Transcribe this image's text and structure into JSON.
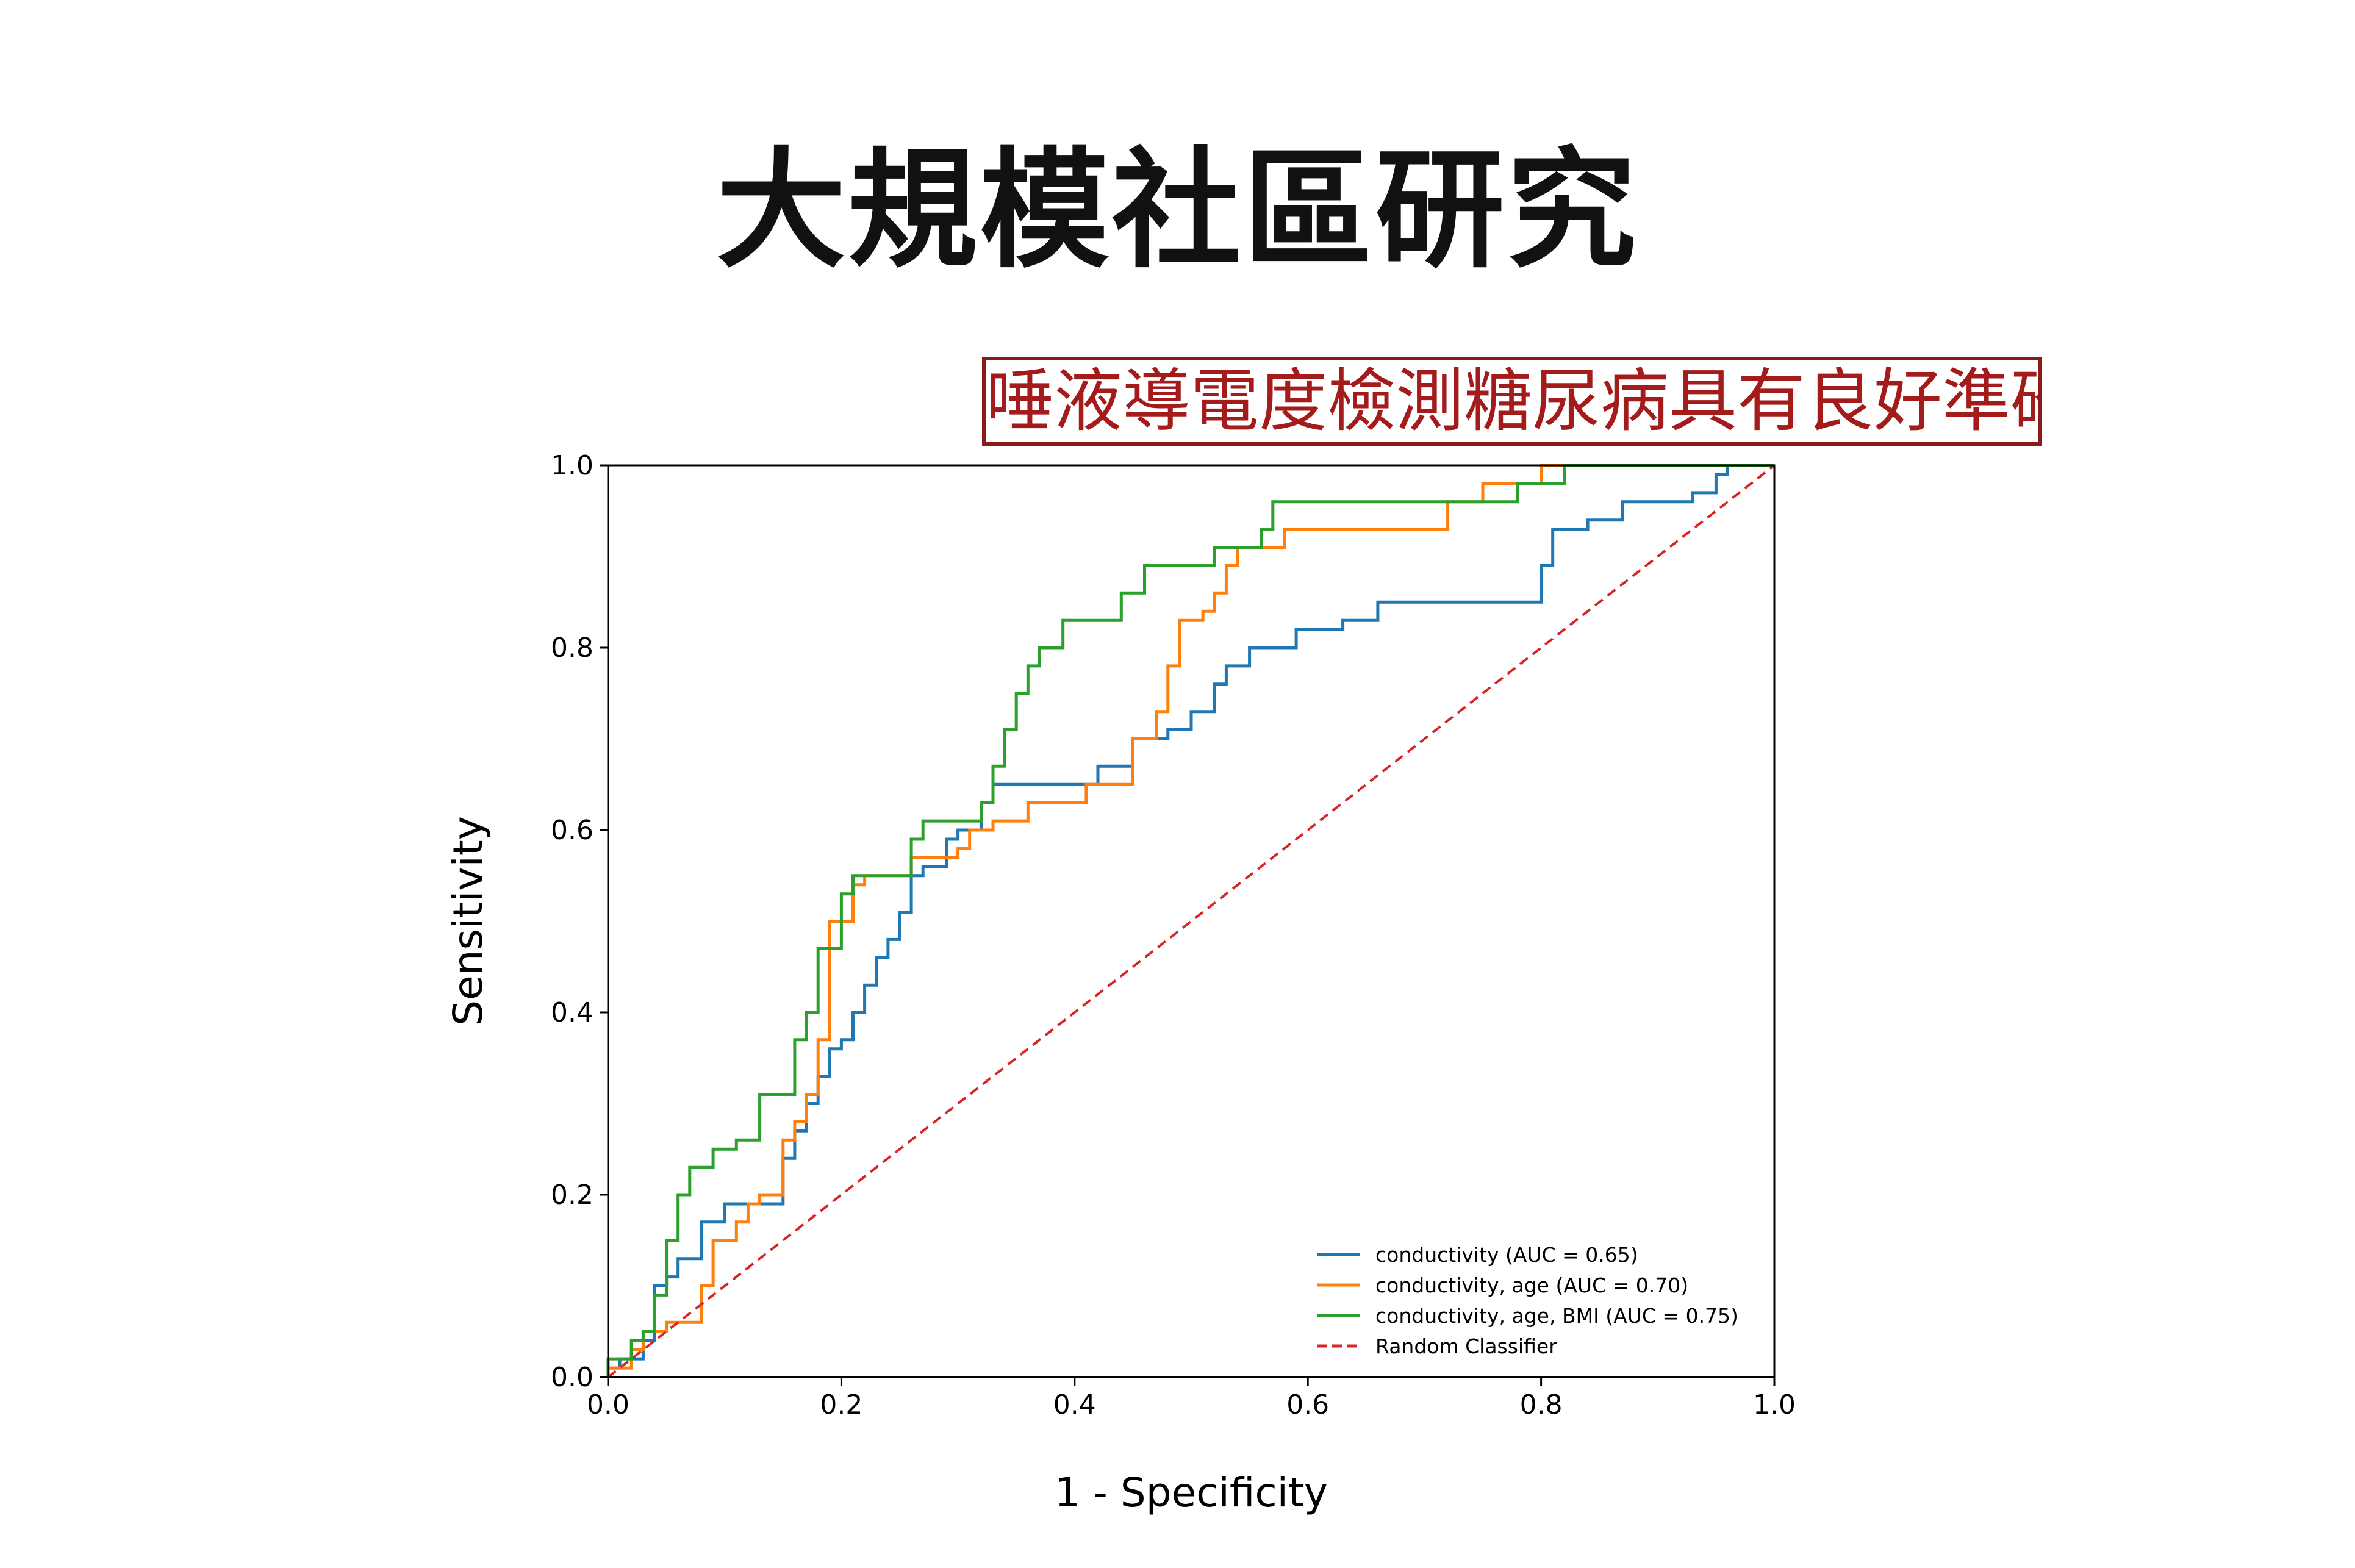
{
  "slide": {
    "title": "大規模社區研究",
    "callout": "唾液導電度檢測糖尿病具有良好準確率"
  },
  "chart_data": {
    "type": "line",
    "title": "",
    "xlabel": "1 - Specificity",
    "ylabel": "Sensitivity",
    "xlim": [
      0,
      1
    ],
    "ylim": [
      0,
      1
    ],
    "x_ticks": [
      "0.0",
      "0.2",
      "0.4",
      "0.6",
      "0.8",
      "1.0"
    ],
    "y_ticks": [
      "0.0",
      "0.2",
      "0.4",
      "0.6",
      "0.8",
      "1.0"
    ],
    "grid": false,
    "legend_position": "lower-right",
    "series": [
      {
        "name": "conductivity (AUC = 0.65)",
        "color": "#1f77b4",
        "style": "solid",
        "points": [
          [
            0.0,
            0.0
          ],
          [
            0.0,
            0.01
          ],
          [
            0.01,
            0.01
          ],
          [
            0.01,
            0.02
          ],
          [
            0.03,
            0.02
          ],
          [
            0.03,
            0.04
          ],
          [
            0.04,
            0.04
          ],
          [
            0.04,
            0.1
          ],
          [
            0.05,
            0.1
          ],
          [
            0.05,
            0.11
          ],
          [
            0.06,
            0.11
          ],
          [
            0.06,
            0.13
          ],
          [
            0.08,
            0.13
          ],
          [
            0.08,
            0.17
          ],
          [
            0.1,
            0.17
          ],
          [
            0.1,
            0.19
          ],
          [
            0.15,
            0.19
          ],
          [
            0.15,
            0.24
          ],
          [
            0.16,
            0.24
          ],
          [
            0.16,
            0.27
          ],
          [
            0.17,
            0.27
          ],
          [
            0.17,
            0.3
          ],
          [
            0.18,
            0.3
          ],
          [
            0.18,
            0.33
          ],
          [
            0.19,
            0.33
          ],
          [
            0.19,
            0.36
          ],
          [
            0.2,
            0.36
          ],
          [
            0.2,
            0.37
          ],
          [
            0.21,
            0.37
          ],
          [
            0.21,
            0.4
          ],
          [
            0.22,
            0.4
          ],
          [
            0.22,
            0.43
          ],
          [
            0.23,
            0.43
          ],
          [
            0.23,
            0.46
          ],
          [
            0.24,
            0.46
          ],
          [
            0.24,
            0.48
          ],
          [
            0.25,
            0.48
          ],
          [
            0.25,
            0.51
          ],
          [
            0.26,
            0.51
          ],
          [
            0.26,
            0.55
          ],
          [
            0.27,
            0.55
          ],
          [
            0.27,
            0.56
          ],
          [
            0.29,
            0.56
          ],
          [
            0.29,
            0.59
          ],
          [
            0.3,
            0.59
          ],
          [
            0.3,
            0.6
          ],
          [
            0.32,
            0.6
          ],
          [
            0.32,
            0.63
          ],
          [
            0.33,
            0.63
          ],
          [
            0.33,
            0.65
          ],
          [
            0.42,
            0.65
          ],
          [
            0.42,
            0.67
          ],
          [
            0.45,
            0.67
          ],
          [
            0.45,
            0.7
          ],
          [
            0.48,
            0.7
          ],
          [
            0.48,
            0.71
          ],
          [
            0.5,
            0.71
          ],
          [
            0.5,
            0.73
          ],
          [
            0.52,
            0.73
          ],
          [
            0.52,
            0.76
          ],
          [
            0.53,
            0.76
          ],
          [
            0.53,
            0.78
          ],
          [
            0.55,
            0.78
          ],
          [
            0.55,
            0.8
          ],
          [
            0.59,
            0.8
          ],
          [
            0.59,
            0.82
          ],
          [
            0.63,
            0.82
          ],
          [
            0.63,
            0.83
          ],
          [
            0.66,
            0.83
          ],
          [
            0.66,
            0.85
          ],
          [
            0.8,
            0.85
          ],
          [
            0.8,
            0.87
          ],
          [
            0.8,
            0.87
          ],
          [
            0.8,
            0.89
          ],
          [
            0.81,
            0.89
          ],
          [
            0.81,
            0.91
          ],
          [
            0.81,
            0.91
          ],
          [
            0.81,
            0.93
          ],
          [
            0.84,
            0.93
          ],
          [
            0.84,
            0.94
          ],
          [
            0.87,
            0.94
          ],
          [
            0.87,
            0.96
          ],
          [
            0.93,
            0.96
          ],
          [
            0.93,
            0.97
          ],
          [
            0.95,
            0.97
          ],
          [
            0.95,
            0.99
          ],
          [
            0.96,
            0.99
          ],
          [
            0.96,
            1.0
          ],
          [
            1.0,
            1.0
          ]
        ]
      },
      {
        "name": "conductivity, age (AUC = 0.70)",
        "color": "#ff7f0e",
        "style": "solid",
        "points": [
          [
            0.0,
            0.0
          ],
          [
            0.0,
            0.01
          ],
          [
            0.02,
            0.01
          ],
          [
            0.02,
            0.03
          ],
          [
            0.03,
            0.03
          ],
          [
            0.03,
            0.05
          ],
          [
            0.05,
            0.05
          ],
          [
            0.05,
            0.06
          ],
          [
            0.08,
            0.06
          ],
          [
            0.08,
            0.1
          ],
          [
            0.09,
            0.1
          ],
          [
            0.09,
            0.15
          ],
          [
            0.11,
            0.15
          ],
          [
            0.11,
            0.17
          ],
          [
            0.12,
            0.17
          ],
          [
            0.12,
            0.19
          ],
          [
            0.13,
            0.19
          ],
          [
            0.13,
            0.2
          ],
          [
            0.15,
            0.2
          ],
          [
            0.15,
            0.26
          ],
          [
            0.16,
            0.26
          ],
          [
            0.16,
            0.28
          ],
          [
            0.17,
            0.28
          ],
          [
            0.17,
            0.31
          ],
          [
            0.18,
            0.31
          ],
          [
            0.18,
            0.37
          ],
          [
            0.19,
            0.37
          ],
          [
            0.19,
            0.5
          ],
          [
            0.21,
            0.5
          ],
          [
            0.21,
            0.54
          ],
          [
            0.22,
            0.54
          ],
          [
            0.22,
            0.55
          ],
          [
            0.26,
            0.55
          ],
          [
            0.26,
            0.57
          ],
          [
            0.3,
            0.57
          ],
          [
            0.3,
            0.58
          ],
          [
            0.31,
            0.58
          ],
          [
            0.31,
            0.6
          ],
          [
            0.33,
            0.6
          ],
          [
            0.33,
            0.61
          ],
          [
            0.36,
            0.61
          ],
          [
            0.36,
            0.63
          ],
          [
            0.41,
            0.63
          ],
          [
            0.41,
            0.65
          ],
          [
            0.45,
            0.65
          ],
          [
            0.45,
            0.7
          ],
          [
            0.47,
            0.7
          ],
          [
            0.47,
            0.73
          ],
          [
            0.48,
            0.73
          ],
          [
            0.48,
            0.78
          ],
          [
            0.49,
            0.78
          ],
          [
            0.49,
            0.83
          ],
          [
            0.51,
            0.83
          ],
          [
            0.51,
            0.84
          ],
          [
            0.52,
            0.84
          ],
          [
            0.52,
            0.86
          ],
          [
            0.53,
            0.86
          ],
          [
            0.53,
            0.89
          ],
          [
            0.54,
            0.89
          ],
          [
            0.54,
            0.91
          ],
          [
            0.58,
            0.91
          ],
          [
            0.58,
            0.93
          ],
          [
            0.72,
            0.93
          ],
          [
            0.72,
            0.96
          ],
          [
            0.75,
            0.96
          ],
          [
            0.75,
            0.98
          ],
          [
            0.8,
            0.98
          ],
          [
            0.8,
            1.0
          ],
          [
            1.0,
            1.0
          ]
        ]
      },
      {
        "name": "conductivity, age, BMI (AUC = 0.75)",
        "color": "#2ca02c",
        "style": "solid",
        "points": [
          [
            0.0,
            0.0
          ],
          [
            0.0,
            0.02
          ],
          [
            0.02,
            0.02
          ],
          [
            0.02,
            0.04
          ],
          [
            0.03,
            0.04
          ],
          [
            0.03,
            0.05
          ],
          [
            0.04,
            0.05
          ],
          [
            0.04,
            0.09
          ],
          [
            0.05,
            0.09
          ],
          [
            0.05,
            0.15
          ],
          [
            0.06,
            0.15
          ],
          [
            0.06,
            0.2
          ],
          [
            0.07,
            0.2
          ],
          [
            0.07,
            0.23
          ],
          [
            0.09,
            0.23
          ],
          [
            0.09,
            0.25
          ],
          [
            0.11,
            0.25
          ],
          [
            0.11,
            0.26
          ],
          [
            0.13,
            0.26
          ],
          [
            0.13,
            0.31
          ],
          [
            0.16,
            0.31
          ],
          [
            0.16,
            0.37
          ],
          [
            0.17,
            0.37
          ],
          [
            0.17,
            0.4
          ],
          [
            0.18,
            0.4
          ],
          [
            0.18,
            0.47
          ],
          [
            0.2,
            0.47
          ],
          [
            0.2,
            0.53
          ],
          [
            0.21,
            0.53
          ],
          [
            0.21,
            0.55
          ],
          [
            0.26,
            0.55
          ],
          [
            0.26,
            0.59
          ],
          [
            0.27,
            0.59
          ],
          [
            0.27,
            0.61
          ],
          [
            0.32,
            0.61
          ],
          [
            0.32,
            0.63
          ],
          [
            0.33,
            0.63
          ],
          [
            0.33,
            0.67
          ],
          [
            0.34,
            0.67
          ],
          [
            0.34,
            0.71
          ],
          [
            0.35,
            0.71
          ],
          [
            0.35,
            0.75
          ],
          [
            0.36,
            0.75
          ],
          [
            0.36,
            0.78
          ],
          [
            0.37,
            0.78
          ],
          [
            0.37,
            0.8
          ],
          [
            0.39,
            0.8
          ],
          [
            0.39,
            0.83
          ],
          [
            0.44,
            0.83
          ],
          [
            0.44,
            0.86
          ],
          [
            0.46,
            0.86
          ],
          [
            0.46,
            0.89
          ],
          [
            0.52,
            0.89
          ],
          [
            0.52,
            0.91
          ],
          [
            0.56,
            0.91
          ],
          [
            0.56,
            0.93
          ],
          [
            0.57,
            0.93
          ],
          [
            0.57,
            0.96
          ],
          [
            0.78,
            0.96
          ],
          [
            0.78,
            0.98
          ],
          [
            0.82,
            0.98
          ],
          [
            0.82,
            1.0
          ],
          [
            1.0,
            1.0
          ]
        ]
      },
      {
        "name": "Random Classifier",
        "color": "#d62728",
        "style": "dashed",
        "points": [
          [
            0.0,
            0.0
          ],
          [
            1.0,
            1.0
          ]
        ]
      }
    ]
  }
}
